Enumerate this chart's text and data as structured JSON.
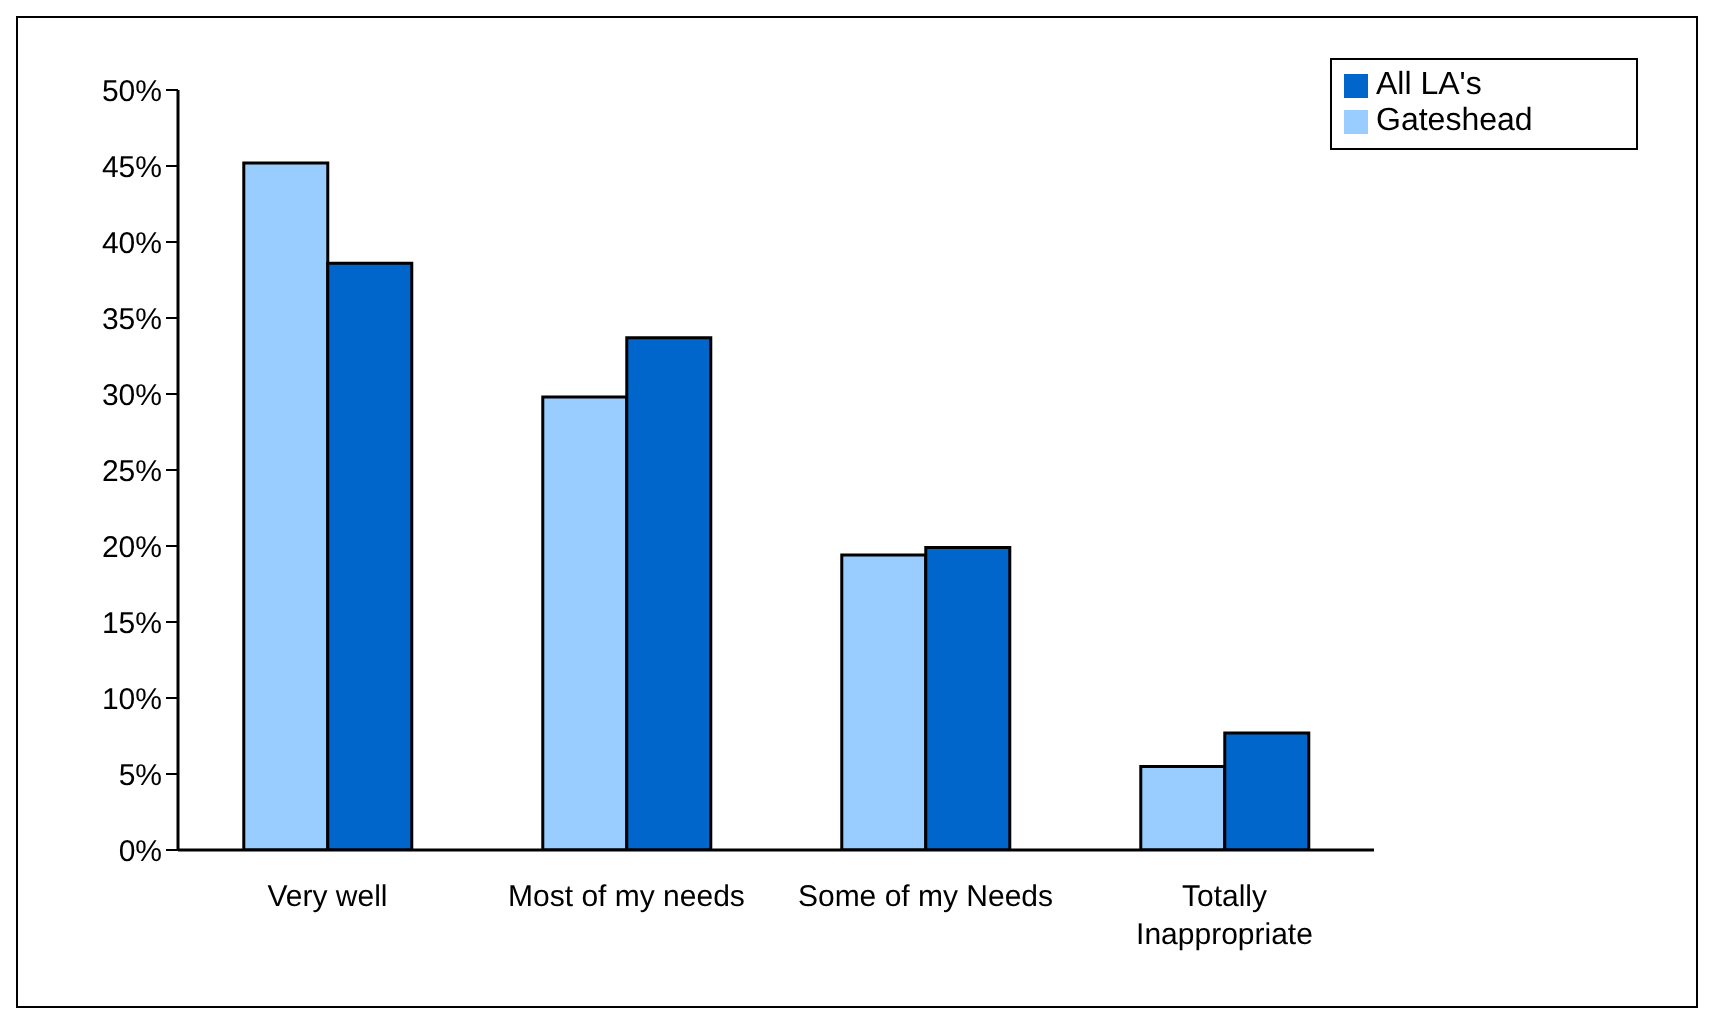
{
  "chart_data": {
    "type": "bar",
    "categories": [
      "Very well",
      "Most of my needs",
      "Some of my Needs",
      "Totally Inappropriate"
    ],
    "series": [
      {
        "name": "Gateshead",
        "color": "#99ccff",
        "values": [
          45.2,
          29.8,
          19.4,
          5.5
        ]
      },
      {
        "name": "All LA's",
        "color": "#0066cc",
        "values": [
          38.6,
          33.7,
          19.9,
          7.7
        ]
      }
    ],
    "ylim": [
      0,
      50
    ],
    "yticks": [
      {
        "value": 0,
        "label": "0%"
      },
      {
        "value": 5,
        "label": "5%"
      },
      {
        "value": 10,
        "label": "10%"
      },
      {
        "value": 15,
        "label": "15%"
      },
      {
        "value": 20,
        "label": "20%"
      },
      {
        "value": 25,
        "label": "25%"
      },
      {
        "value": 30,
        "label": "30%"
      },
      {
        "value": 35,
        "label": "35%"
      },
      {
        "value": 40,
        "label": "40%"
      },
      {
        "value": 45,
        "label": "45%"
      },
      {
        "value": 50,
        "label": "50%"
      }
    ],
    "grid": false,
    "legend": "top right"
  }
}
